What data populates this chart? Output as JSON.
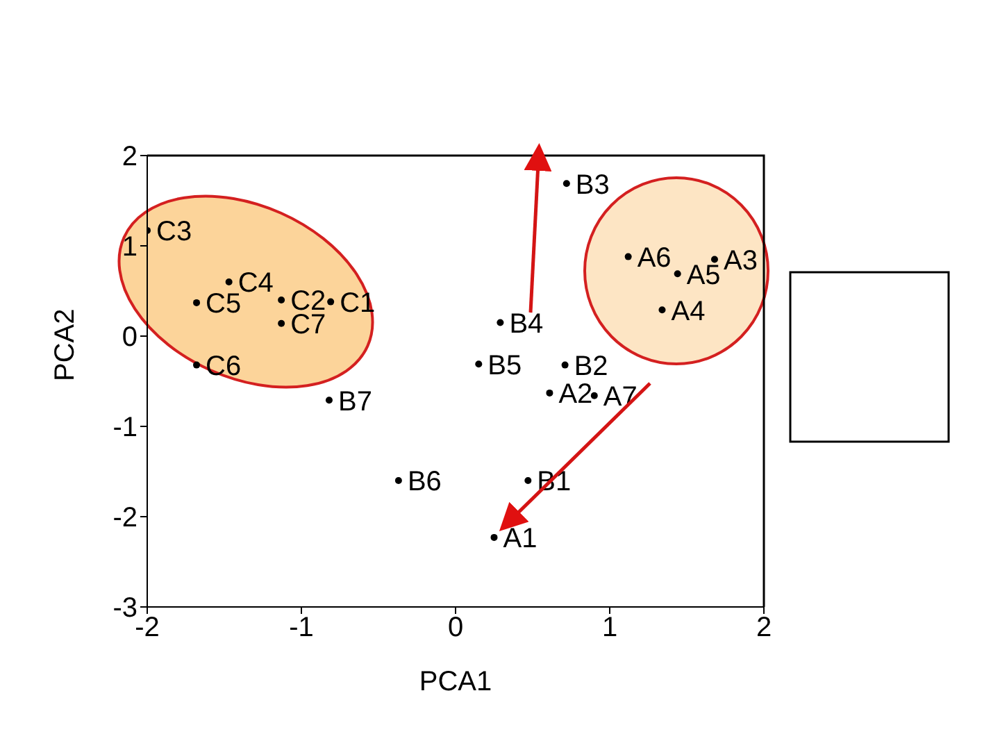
{
  "chart_data": {
    "type": "scatter",
    "xlabel": "PCA1",
    "ylabel": "PCA2",
    "x": [
      -2.0,
      -1.47,
      -1.68,
      -1.13,
      -0.81,
      -1.13,
      -1.68,
      -0.82,
      0.72,
      0.29,
      0.15,
      0.71,
      0.61,
      0.9,
      1.12,
      1.44,
      1.68,
      1.34,
      -0.37,
      0.47,
      0.25
    ],
    "values": [
      1.17,
      0.6,
      0.37,
      0.4,
      0.38,
      0.14,
      -0.32,
      -0.71,
      1.69,
      0.15,
      -0.31,
      -0.32,
      -0.63,
      -0.66,
      0.88,
      0.69,
      0.85,
      0.29,
      -1.6,
      -1.6,
      -2.23
    ],
    "value_labels": [
      "C3",
      "C4",
      "C5",
      "C2",
      "C1",
      "C7",
      "C6",
      "B7",
      "B3",
      "B4",
      "B5",
      "B2",
      "A2",
      "A7",
      "A6",
      "A5",
      "A3",
      "A4",
      "B6",
      "B1",
      "A1"
    ],
    "color": "#000000",
    "marker": "circle",
    "xlim": [
      -2,
      2
    ],
    "ylim": [
      -3,
      2
    ],
    "xticks": [
      -2,
      -1,
      0,
      1,
      2
    ],
    "yticks": [
      -3,
      -2,
      -1,
      0,
      1,
      2
    ]
  }
}
